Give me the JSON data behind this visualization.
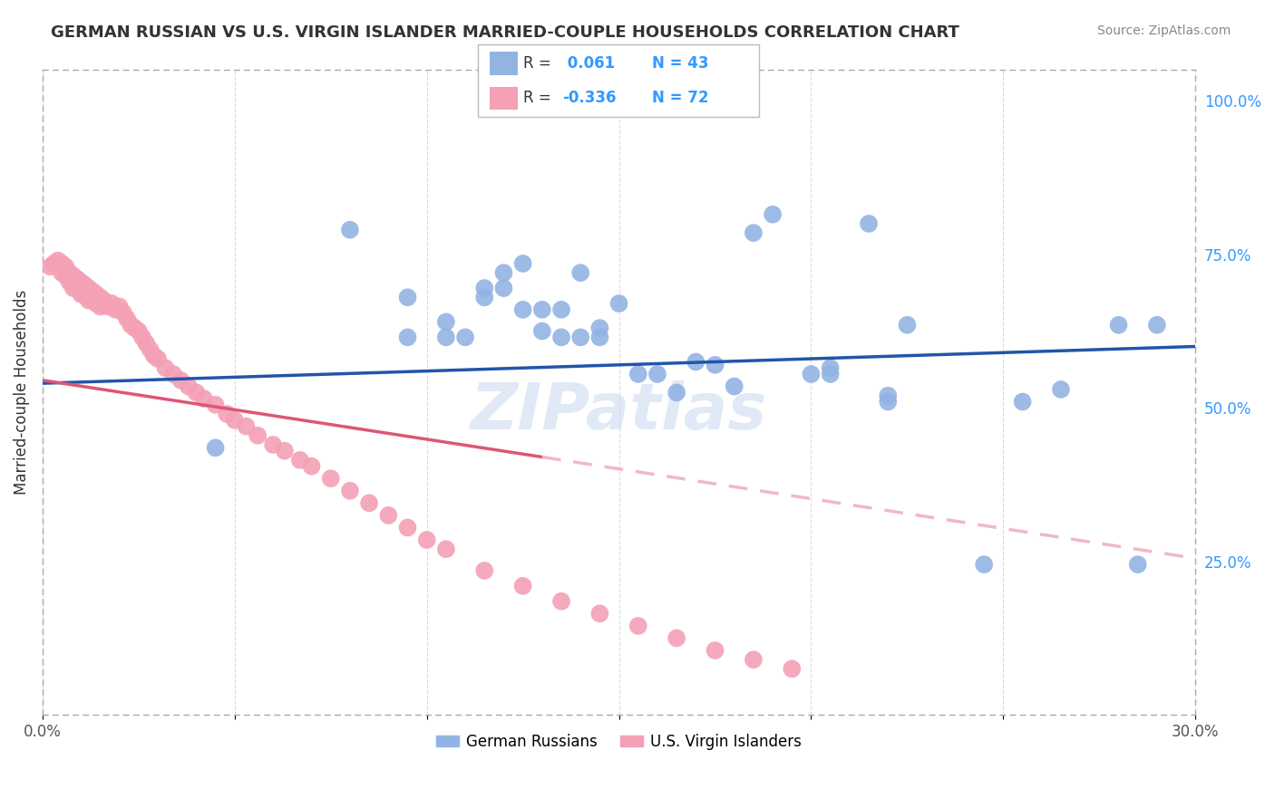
{
  "title": "GERMAN RUSSIAN VS U.S. VIRGIN ISLANDER MARRIED-COUPLE HOUSEHOLDS CORRELATION CHART",
  "source": "Source: ZipAtlas.com",
  "ylabel": "Married-couple Households",
  "xmin": 0.0,
  "xmax": 0.3,
  "ymin": 0.0,
  "ymax": 1.05,
  "x_ticks": [
    0.0,
    0.05,
    0.1,
    0.15,
    0.2,
    0.25,
    0.3
  ],
  "x_tick_labels": [
    "0.0%",
    "",
    "",
    "",
    "",
    "",
    "30.0%"
  ],
  "y_ticks_right": [
    0.25,
    0.5,
    0.75,
    1.0
  ],
  "y_tick_labels_right": [
    "25.0%",
    "50.0%",
    "75.0%",
    "100.0%"
  ],
  "blue_R": 0.061,
  "blue_N": 43,
  "pink_R": -0.336,
  "pink_N": 72,
  "blue_color": "#92b4e3",
  "pink_color": "#f4a0b5",
  "blue_line_color": "#2255aa",
  "pink_line_color": "#e05575",
  "pink_line_dashed_color": "#f0b8c8",
  "watermark": "ZIPatlas",
  "blue_points_x": [
    0.045,
    0.08,
    0.095,
    0.095,
    0.105,
    0.105,
    0.11,
    0.115,
    0.115,
    0.12,
    0.12,
    0.125,
    0.125,
    0.13,
    0.13,
    0.135,
    0.135,
    0.14,
    0.14,
    0.145,
    0.145,
    0.15,
    0.155,
    0.16,
    0.165,
    0.17,
    0.175,
    0.18,
    0.185,
    0.19,
    0.2,
    0.205,
    0.205,
    0.215,
    0.22,
    0.22,
    0.225,
    0.245,
    0.255,
    0.265,
    0.28,
    0.285,
    0.29
  ],
  "blue_points_y": [
    0.435,
    0.79,
    0.615,
    0.68,
    0.64,
    0.615,
    0.615,
    0.695,
    0.68,
    0.72,
    0.695,
    0.735,
    0.66,
    0.66,
    0.625,
    0.66,
    0.615,
    0.72,
    0.615,
    0.63,
    0.615,
    0.67,
    0.555,
    0.555,
    0.525,
    0.575,
    0.57,
    0.535,
    0.785,
    0.815,
    0.555,
    0.555,
    0.565,
    0.8,
    0.52,
    0.51,
    0.635,
    0.245,
    0.51,
    0.53,
    0.635,
    0.245,
    0.635
  ],
  "pink_points_x": [
    0.002,
    0.003,
    0.004,
    0.005,
    0.005,
    0.006,
    0.006,
    0.007,
    0.007,
    0.008,
    0.008,
    0.009,
    0.009,
    0.01,
    0.01,
    0.01,
    0.011,
    0.011,
    0.012,
    0.012,
    0.013,
    0.013,
    0.014,
    0.014,
    0.015,
    0.015,
    0.016,
    0.017,
    0.018,
    0.019,
    0.02,
    0.021,
    0.022,
    0.023,
    0.024,
    0.025,
    0.026,
    0.027,
    0.028,
    0.029,
    0.03,
    0.032,
    0.034,
    0.036,
    0.038,
    0.04,
    0.042,
    0.045,
    0.048,
    0.05,
    0.053,
    0.056,
    0.06,
    0.063,
    0.067,
    0.07,
    0.075,
    0.08,
    0.085,
    0.09,
    0.095,
    0.1,
    0.105,
    0.115,
    0.125,
    0.135,
    0.145,
    0.155,
    0.165,
    0.175,
    0.185,
    0.195
  ],
  "pink_points_y": [
    0.73,
    0.735,
    0.74,
    0.735,
    0.72,
    0.73,
    0.715,
    0.72,
    0.705,
    0.715,
    0.695,
    0.71,
    0.695,
    0.705,
    0.695,
    0.685,
    0.7,
    0.685,
    0.695,
    0.675,
    0.69,
    0.675,
    0.685,
    0.67,
    0.68,
    0.665,
    0.675,
    0.665,
    0.67,
    0.66,
    0.665,
    0.655,
    0.645,
    0.635,
    0.63,
    0.625,
    0.615,
    0.605,
    0.595,
    0.585,
    0.58,
    0.565,
    0.555,
    0.545,
    0.535,
    0.525,
    0.515,
    0.505,
    0.49,
    0.48,
    0.47,
    0.455,
    0.44,
    0.43,
    0.415,
    0.405,
    0.385,
    0.365,
    0.345,
    0.325,
    0.305,
    0.285,
    0.27,
    0.235,
    0.21,
    0.185,
    0.165,
    0.145,
    0.125,
    0.105,
    0.09,
    0.075
  ]
}
